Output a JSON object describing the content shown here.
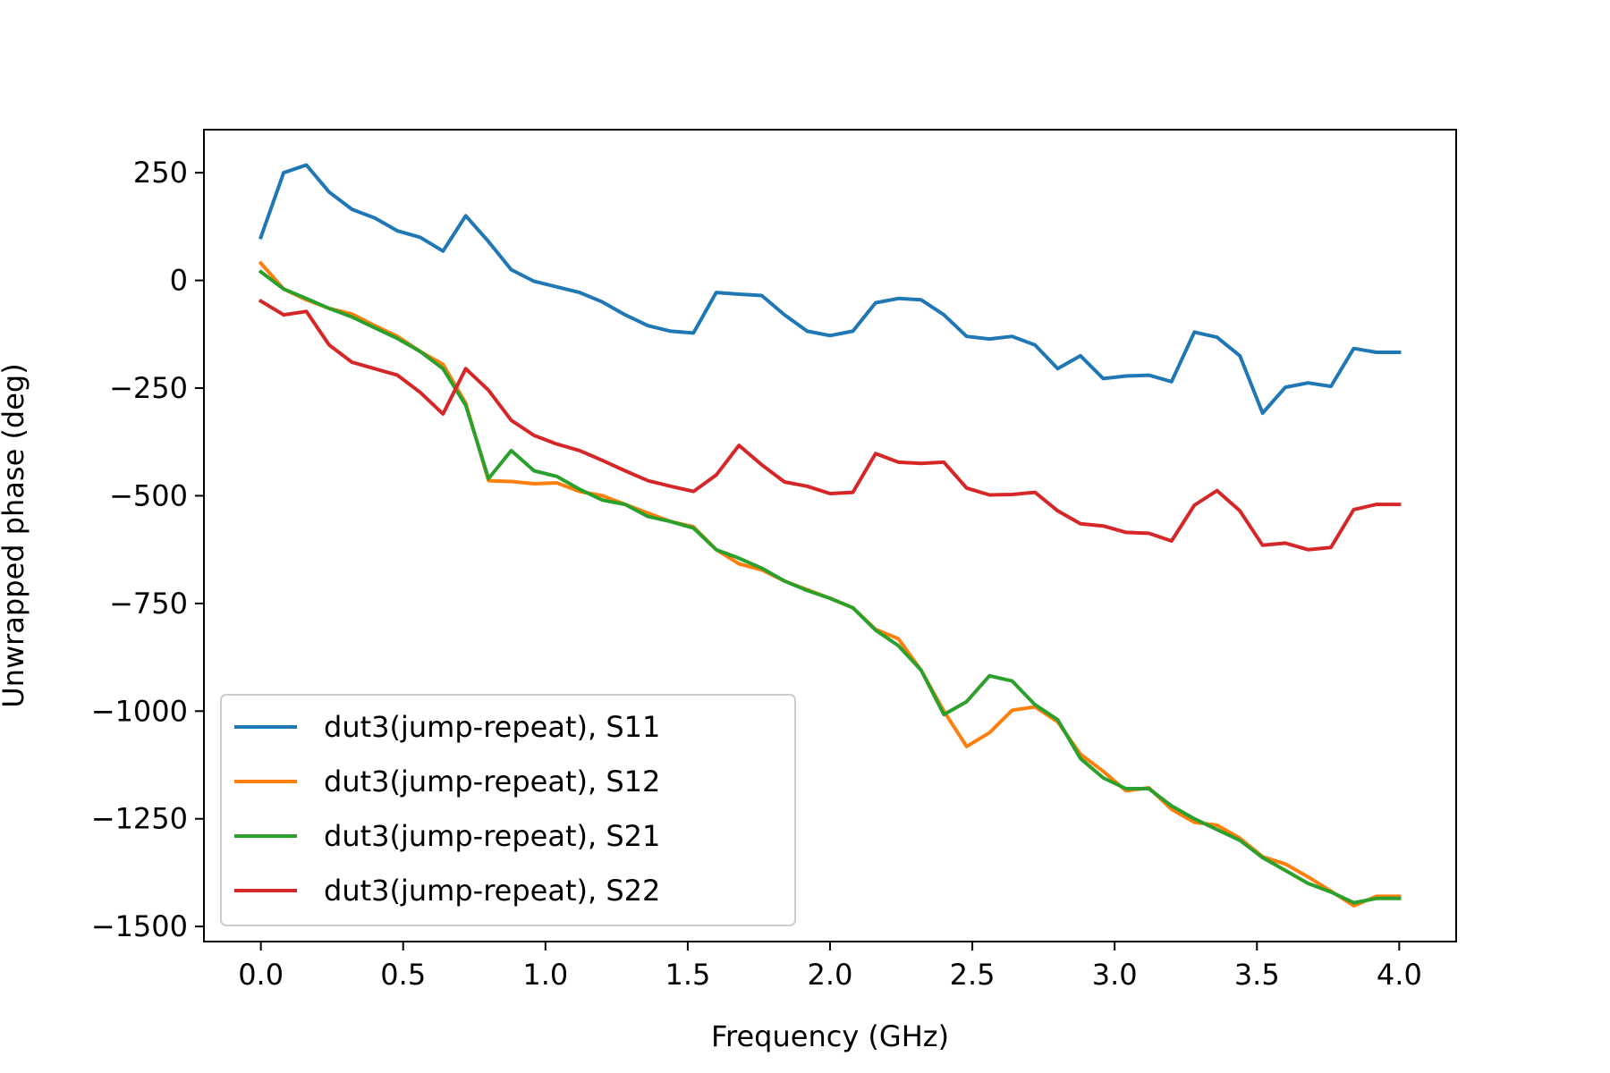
{
  "chart_data": {
    "type": "line",
    "title": "",
    "xlabel": "Frequency (GHz)",
    "ylabel": "Unwrapped phase (deg)",
    "xlim": [
      -0.2,
      4.2
    ],
    "ylim": [
      -1535,
      350
    ],
    "xticks": [
      0.0,
      0.5,
      1.0,
      1.5,
      2.0,
      2.5,
      3.0,
      3.5,
      4.0
    ],
    "xtick_labels": [
      "0.0",
      "0.5",
      "1.0",
      "1.5",
      "2.0",
      "2.5",
      "3.0",
      "3.5",
      "4.0"
    ],
    "yticks": [
      250,
      0,
      -250,
      -500,
      -750,
      -1000,
      -1250,
      -1500
    ],
    "ytick_labels": [
      "250",
      "0",
      "−250",
      "−500",
      "−750",
      "−1000",
      "−1250",
      "−1500"
    ],
    "grid": false,
    "legend": "lower-left",
    "x": [
      0.0,
      0.08,
      0.16,
      0.24,
      0.32,
      0.4,
      0.48,
      0.56,
      0.64,
      0.72,
      0.8,
      0.88,
      0.96,
      1.04,
      1.12,
      1.2,
      1.28,
      1.36,
      1.44,
      1.52,
      1.6,
      1.68,
      1.76,
      1.84,
      1.92,
      2.0,
      2.08,
      2.16,
      2.24,
      2.32,
      2.4,
      2.48,
      2.56,
      2.64,
      2.72,
      2.8,
      2.88,
      2.96,
      3.04,
      3.12,
      3.2,
      3.28,
      3.36,
      3.44,
      3.52,
      3.6,
      3.68,
      3.76,
      3.84,
      3.92,
      4.0
    ],
    "series": [
      {
        "name": "dut3(jump-repeat), S11",
        "color": "#1f77b4",
        "values": [
          100,
          250,
          268,
          205,
          165,
          145,
          115,
          100,
          68,
          150,
          90,
          25,
          -2,
          -15,
          -28,
          -50,
          -80,
          -105,
          -118,
          -122,
          -28,
          -32,
          -35,
          -80,
          -118,
          -128,
          -118,
          -52,
          -42,
          -45,
          -80,
          -130,
          -136,
          -130,
          -150,
          -205,
          -175,
          -228,
          -222,
          -220,
          -235,
          -120,
          -132,
          -175,
          -308,
          -248,
          -238,
          -246,
          -158,
          -167,
          -167
        ]
      },
      {
        "name": "dut3(jump-repeat), S12",
        "color": "#ff7f0e",
        "values": [
          40,
          -20,
          -45,
          -65,
          -78,
          -105,
          -130,
          -165,
          -195,
          -285,
          -465,
          -467,
          -472,
          -470,
          -490,
          -500,
          -520,
          -540,
          -560,
          -572,
          -625,
          -658,
          -672,
          -698,
          -718,
          -738,
          -760,
          -810,
          -832,
          -905,
          -1000,
          -1082,
          -1050,
          -998,
          -990,
          -1025,
          -1100,
          -1140,
          -1185,
          -1178,
          -1228,
          -1258,
          -1265,
          -1295,
          -1338,
          -1355,
          -1385,
          -1418,
          -1452,
          -1430,
          -1430
        ]
      },
      {
        "name": "dut3(jump-repeat), S21",
        "color": "#2ca02c",
        "values": [
          20,
          -20,
          -42,
          -65,
          -85,
          -110,
          -135,
          -165,
          -205,
          -290,
          -460,
          -395,
          -442,
          -455,
          -485,
          -510,
          -520,
          -548,
          -560,
          -575,
          -625,
          -645,
          -668,
          -698,
          -720,
          -738,
          -760,
          -812,
          -848,
          -905,
          -1008,
          -978,
          -918,
          -930,
          -985,
          -1020,
          -1110,
          -1155,
          -1180,
          -1180,
          -1220,
          -1250,
          -1275,
          -1300,
          -1340,
          -1370,
          -1400,
          -1420,
          -1445,
          -1435,
          -1435
        ]
      },
      {
        "name": "dut3(jump-repeat), S22",
        "color": "#d62728",
        "values": [
          -48,
          -80,
          -72,
          -150,
          -190,
          -205,
          -220,
          -260,
          -310,
          -205,
          -255,
          -325,
          -360,
          -380,
          -395,
          -418,
          -442,
          -465,
          -478,
          -490,
          -452,
          -383,
          -428,
          -468,
          -478,
          -495,
          -492,
          -402,
          -422,
          -425,
          -422,
          -482,
          -498,
          -497,
          -492,
          -535,
          -565,
          -570,
          -585,
          -587,
          -605,
          -522,
          -488,
          -535,
          -615,
          -610,
          -625,
          -620,
          -532,
          -520,
          -520
        ]
      }
    ]
  }
}
